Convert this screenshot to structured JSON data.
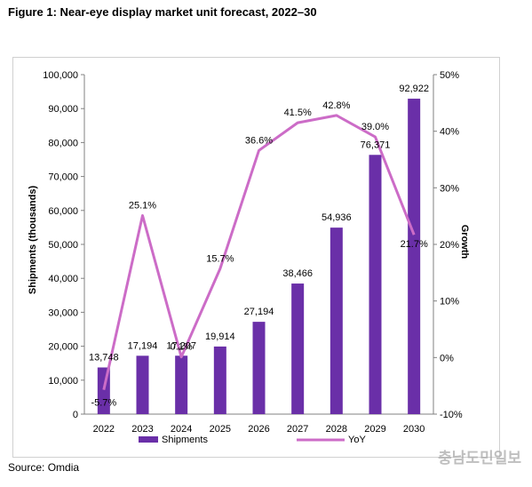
{
  "figure_title": "Figure 1: Near-eye display market unit forecast, 2022–30",
  "source": "Source: Omdia",
  "watermark": "충남도민일보",
  "colors": {
    "bar": "#6a2fa8",
    "line": "#cc6cc7",
    "axis": "#808080"
  },
  "chart_data": {
    "type": "bar",
    "categories": [
      "2022",
      "2023",
      "2024",
      "2025",
      "2026",
      "2027",
      "2028",
      "2029",
      "2030"
    ],
    "series": [
      {
        "name": "Shipments",
        "type": "bar",
        "axis": "left",
        "values": [
          13748,
          17194,
          17207,
          19914,
          27194,
          38466,
          54936,
          76371,
          92922
        ],
        "labels": [
          "13,748",
          "17,194",
          "17,207",
          "19,914",
          "27,194",
          "38,466",
          "54,936",
          "76,371",
          "92,922"
        ]
      },
      {
        "name": "YoY",
        "type": "line",
        "axis": "right",
        "values": [
          -5.7,
          25.1,
          0.1,
          15.7,
          36.6,
          41.5,
          42.8,
          39.0,
          21.7
        ],
        "labels": [
          "-5.7%",
          "25.1%",
          "0.1%",
          "15.7%",
          "36.6%",
          "41.5%",
          "42.8%",
          "39.0%",
          "21.7%"
        ]
      }
    ],
    "ylabel": "Shipments (thousands)",
    "y2label": "Growth",
    "ylim": [
      0,
      100000
    ],
    "y2lim": [
      -10,
      50
    ],
    "yticks": [
      "0",
      "10,000",
      "20,000",
      "30,000",
      "40,000",
      "50,000",
      "60,000",
      "70,000",
      "80,000",
      "90,000",
      "100,000"
    ],
    "y2ticks": [
      "-10%",
      "0%",
      "10%",
      "20%",
      "30%",
      "40%",
      "50%"
    ],
    "legend_position": "bottom",
    "grid": false
  }
}
